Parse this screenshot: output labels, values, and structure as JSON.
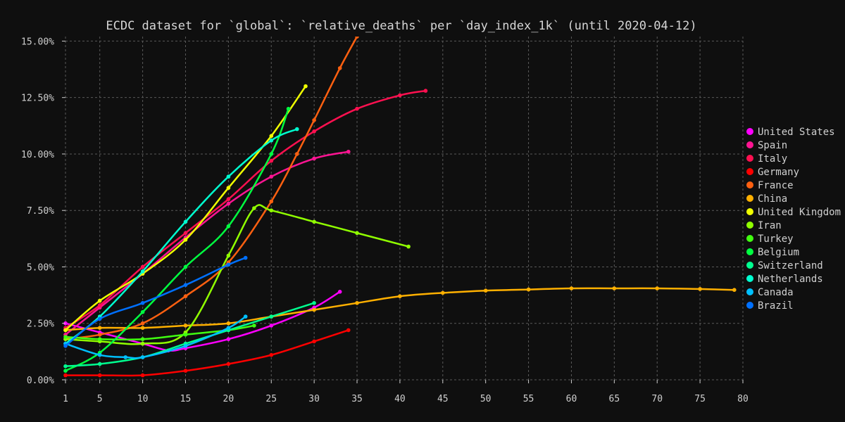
{
  "chart_data": {
    "type": "line",
    "title": "ECDC dataset for `global`: `relative_deaths` per `day_index_1k` (until 2020-04-12)",
    "xlabel": "",
    "ylabel": "",
    "xlim": [
      0,
      80
    ],
    "ylim": [
      0,
      0.152
    ],
    "x_ticks": [
      1,
      5,
      10,
      15,
      20,
      25,
      30,
      35,
      40,
      45,
      50,
      55,
      60,
      65,
      70,
      75,
      80
    ],
    "y_ticks": [
      0,
      0.025,
      0.05,
      0.075,
      0.1,
      0.125,
      0.15
    ],
    "y_tick_labels": [
      "0.00%",
      "2.50%",
      "5.00%",
      "7.50%",
      "10.00%",
      "12.50%",
      "15.00%"
    ],
    "grid": true,
    "legend_position": "right",
    "series": [
      {
        "name": "United States",
        "color": "#ff00ff",
        "x": [
          1,
          5,
          10,
          13,
          15,
          20,
          25,
          30,
          33
        ],
        "y": [
          0.025,
          0.021,
          0.016,
          0.013,
          0.014,
          0.018,
          0.024,
          0.032,
          0.039
        ]
      },
      {
        "name": "Spain",
        "color": "#ff1493",
        "x": [
          1,
          5,
          10,
          15,
          20,
          25,
          30,
          34
        ],
        "y": [
          0.02,
          0.032,
          0.047,
          0.063,
          0.078,
          0.09,
          0.098,
          0.101
        ]
      },
      {
        "name": "Italy",
        "color": "#ff1050",
        "x": [
          1,
          5,
          10,
          15,
          20,
          25,
          30,
          35,
          40,
          43
        ],
        "y": [
          0.023,
          0.033,
          0.05,
          0.065,
          0.08,
          0.097,
          0.11,
          0.12,
          0.126,
          0.128
        ]
      },
      {
        "name": "Germany",
        "color": "#ff0000",
        "x": [
          1,
          5,
          10,
          15,
          20,
          25,
          30,
          34
        ],
        "y": [
          0.002,
          0.002,
          0.002,
          0.004,
          0.007,
          0.011,
          0.017,
          0.022
        ]
      },
      {
        "name": "France",
        "color": "#ff6010",
        "x": [
          1,
          5,
          10,
          15,
          20,
          25,
          28,
          30,
          33,
          35
        ],
        "y": [
          0.018,
          0.02,
          0.025,
          0.037,
          0.052,
          0.079,
          0.1,
          0.115,
          0.138,
          0.152
        ]
      },
      {
        "name": "China",
        "color": "#ffb000",
        "x": [
          1,
          5,
          10,
          15,
          20,
          25,
          30,
          35,
          40,
          45,
          50,
          55,
          60,
          65,
          70,
          75,
          79
        ],
        "y": [
          0.022,
          0.023,
          0.023,
          0.024,
          0.025,
          0.028,
          0.031,
          0.034,
          0.037,
          0.0385,
          0.0395,
          0.04,
          0.0405,
          0.0405,
          0.0405,
          0.0402,
          0.0398
        ]
      },
      {
        "name": "United Kingdom",
        "color": "#f0ff00",
        "x": [
          1,
          5,
          10,
          15,
          20,
          25,
          29
        ],
        "y": [
          0.022,
          0.035,
          0.047,
          0.062,
          0.085,
          0.108,
          0.13
        ]
      },
      {
        "name": "Iran",
        "color": "#90ff00",
        "x": [
          1,
          5,
          10,
          15,
          20,
          23,
          25,
          30,
          35,
          41
        ],
        "y": [
          0.018,
          0.017,
          0.016,
          0.021,
          0.055,
          0.076,
          0.075,
          0.07,
          0.065,
          0.059
        ]
      },
      {
        "name": "Turkey",
        "color": "#40ff10",
        "x": [
          1,
          5,
          10,
          15,
          20,
          23
        ],
        "y": [
          0.019,
          0.018,
          0.018,
          0.02,
          0.022,
          0.024
        ]
      },
      {
        "name": "Belgium",
        "color": "#00ff40",
        "x": [
          1,
          5,
          10,
          15,
          20,
          25,
          27
        ],
        "y": [
          0.004,
          0.012,
          0.03,
          0.05,
          0.068,
          0.1,
          0.12
        ]
      },
      {
        "name": "Switzerland",
        "color": "#00ff90",
        "x": [
          1,
          5,
          10,
          15,
          20,
          25,
          30
        ],
        "y": [
          0.006,
          0.007,
          0.01,
          0.016,
          0.022,
          0.028,
          0.034
        ]
      },
      {
        "name": "Netherlands",
        "color": "#00ffd0",
        "x": [
          1,
          5,
          10,
          15,
          20,
          25,
          28
        ],
        "y": [
          0.016,
          0.028,
          0.048,
          0.07,
          0.09,
          0.106,
          0.111
        ]
      },
      {
        "name": "Canada",
        "color": "#00c0ff",
        "x": [
          1,
          5,
          8,
          10,
          15,
          20,
          22
        ],
        "y": [
          0.016,
          0.011,
          0.01,
          0.01,
          0.015,
          0.023,
          0.028
        ]
      },
      {
        "name": "Brazil",
        "color": "#0070ff",
        "x": [
          1,
          5,
          10,
          15,
          20,
          22
        ],
        "y": [
          0.015,
          0.027,
          0.034,
          0.042,
          0.051,
          0.054
        ]
      }
    ]
  }
}
